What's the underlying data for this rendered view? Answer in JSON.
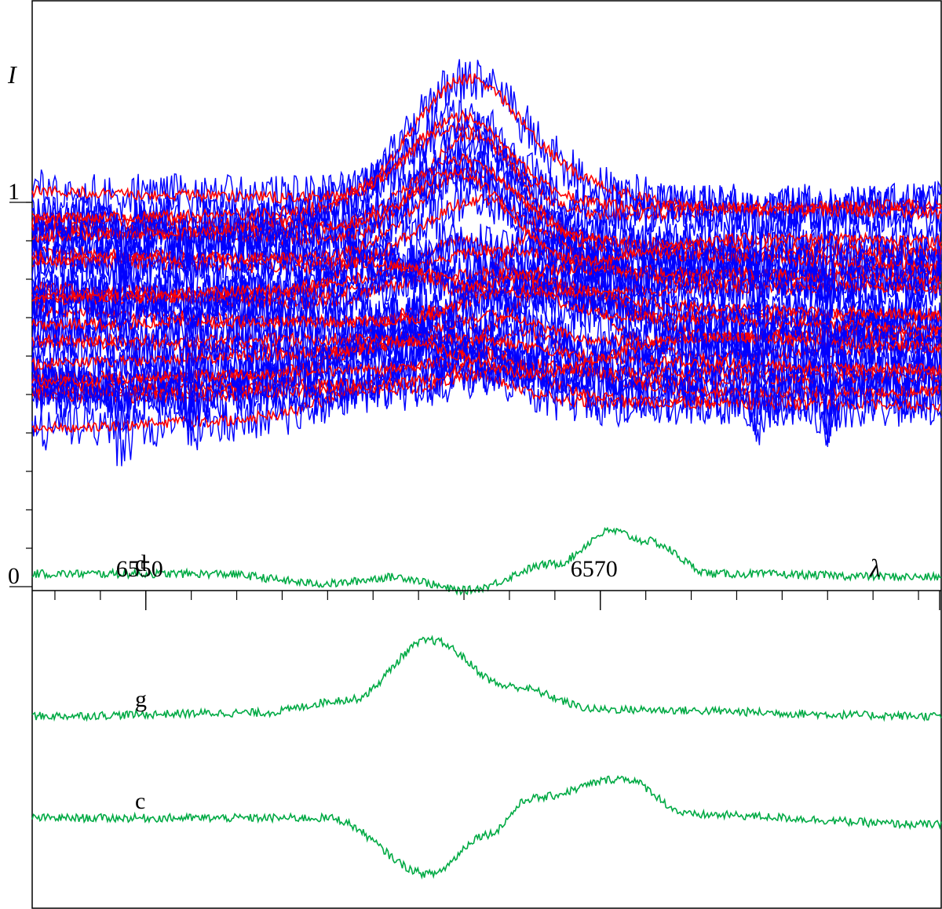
{
  "chart_data": {
    "type": "line",
    "title": "",
    "y_axis_label": "I",
    "x_axis_label": "λ",
    "xlim": [
      6545,
      6585
    ],
    "ylim": [
      0,
      1.5
    ],
    "y_tick_labels": [
      {
        "value": 0,
        "text": "0"
      },
      {
        "value": 1,
        "text": "1"
      }
    ],
    "y_minor_ticks": [
      0.1,
      0.2,
      0.3,
      0.4,
      0.5,
      0.6,
      0.7,
      0.8,
      0.9,
      1.0
    ],
    "x_tick_labels": [
      {
        "value": 6550,
        "text": "6550"
      },
      {
        "value": 6570,
        "text": "6570"
      }
    ],
    "x_minor_ticks_step": 2,
    "x_major_ticks": [
      6550,
      6570,
      6590
    ],
    "grid": false,
    "legend": "none",
    "colors": {
      "observed": "#0000ff",
      "model": "#ff0000",
      "component": "#00aa44"
    },
    "spectra_bundle": {
      "description_count": 24,
      "continuum_range": [
        0.46,
        1.0
      ],
      "emission_peak_x": 6564,
      "emission_peak_max": 1.4,
      "absorption_dips_x": [
        6549,
        6552,
        6577,
        6580
      ]
    },
    "component_series": [
      {
        "name": "d",
        "label_x": 6550,
        "profile": [
          {
            "x": 6545,
            "y": 0.02
          },
          {
            "x": 6553,
            "y": 0.02
          },
          {
            "x": 6558,
            "y": -0.01
          },
          {
            "x": 6561,
            "y": 0.01
          },
          {
            "x": 6564,
            "y": -0.03
          },
          {
            "x": 6568,
            "y": 0.05
          },
          {
            "x": 6570.5,
            "y": 0.15
          },
          {
            "x": 6572,
            "y": 0.12
          },
          {
            "x": 6575,
            "y": 0.02
          },
          {
            "x": 6585,
            "y": 0.01
          }
        ]
      },
      {
        "name": "g",
        "label_x": 6550,
        "profile": [
          {
            "x": 6545,
            "y": 0.0
          },
          {
            "x": 6555,
            "y": 0.01
          },
          {
            "x": 6559,
            "y": 0.05
          },
          {
            "x": 6562.5,
            "y": 0.23
          },
          {
            "x": 6566,
            "y": 0.09
          },
          {
            "x": 6570,
            "y": 0.02
          },
          {
            "x": 6585,
            "y": 0.0
          }
        ]
      },
      {
        "name": "c",
        "label_x": 6550,
        "profile": [
          {
            "x": 6545,
            "y": 0.0
          },
          {
            "x": 6558,
            "y": 0.0
          },
          {
            "x": 6562.5,
            "y": -0.17
          },
          {
            "x": 6565,
            "y": -0.05
          },
          {
            "x": 6567,
            "y": 0.06
          },
          {
            "x": 6571,
            "y": 0.12
          },
          {
            "x": 6574,
            "y": 0.01
          },
          {
            "x": 6585,
            "y": -0.02
          }
        ]
      }
    ]
  }
}
